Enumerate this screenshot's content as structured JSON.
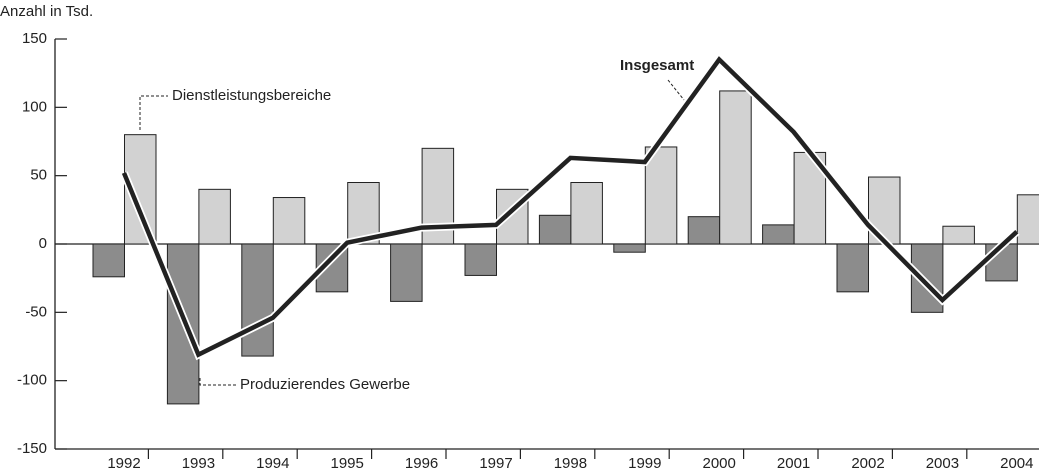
{
  "chart_data": {
    "type": "bar_line",
    "ylabel": "Anzahl in Tsd.",
    "categories": [
      "1992",
      "1993",
      "1994",
      "1995",
      "1996",
      "1997",
      "1998",
      "1999",
      "2000",
      "2001",
      "2002",
      "2003",
      "2004"
    ],
    "series": [
      {
        "name": "Produzierendes Gewerbe",
        "color": "#8c8c8c",
        "type": "bar",
        "values": [
          -24,
          -117,
          -82,
          -35,
          -42,
          -23,
          21,
          -6,
          20,
          14,
          -35,
          -50,
          -27
        ]
      },
      {
        "name": "Dienstleistungsbereiche",
        "color": "#d2d2d2",
        "type": "bar",
        "values": [
          80,
          40,
          34,
          45,
          70,
          40,
          45,
          71,
          112,
          67,
          49,
          13,
          36
        ]
      },
      {
        "name": "Insgesamt",
        "color": "#222222",
        "type": "line",
        "values": [
          52,
          -81,
          -54,
          1,
          12,
          14,
          63,
          60,
          135,
          82,
          14,
          -41,
          9
        ]
      }
    ],
    "ylim": [
      -150,
      150
    ],
    "yticks": [
      -150,
      -100,
      -50,
      0,
      50,
      100,
      150
    ]
  }
}
